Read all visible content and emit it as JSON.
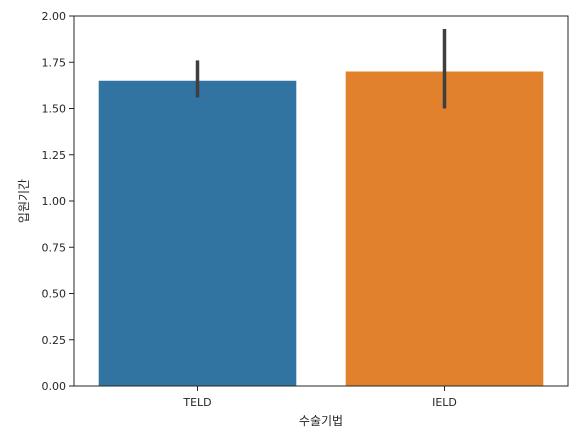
{
  "chart_data": {
    "type": "bar",
    "categories": [
      "TELD",
      "IELD"
    ],
    "values": [
      1.65,
      1.7
    ],
    "error_bars": [
      [
        1.56,
        1.76
      ],
      [
        1.5,
        1.93
      ]
    ],
    "colors": [
      "#3274a1",
      "#e1812c"
    ],
    "errorbar_color": "#3f3f3f",
    "xlabel": "수술기법",
    "ylabel": "입원기간",
    "ylim": [
      0,
      2.0
    ],
    "yticks": [
      "0.00",
      "0.25",
      "0.50",
      "0.75",
      "1.00",
      "1.25",
      "1.50",
      "1.75",
      "2.00"
    ],
    "grid": false,
    "legend": "none"
  }
}
